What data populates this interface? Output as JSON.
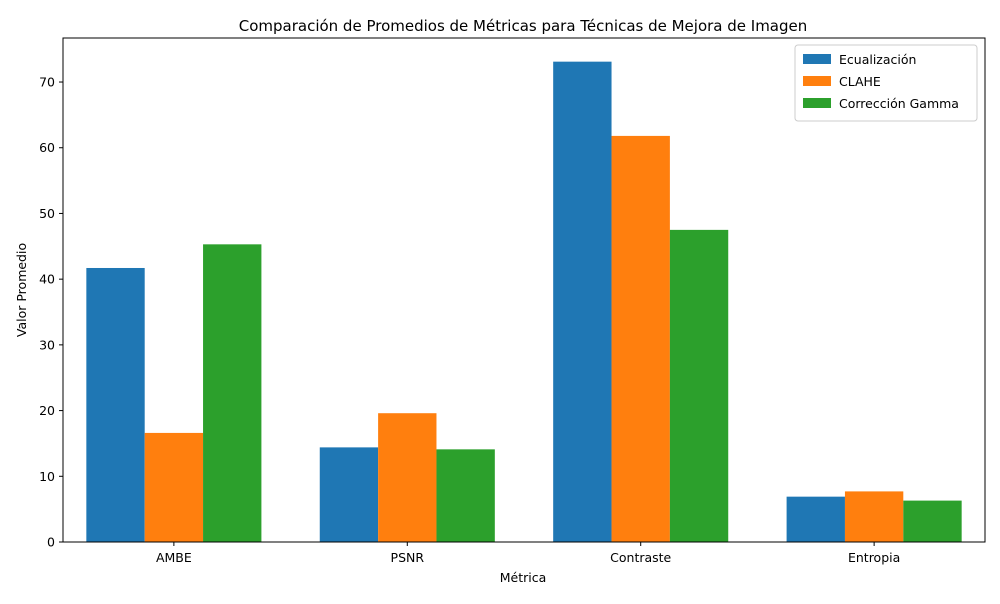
{
  "chart_data": {
    "type": "bar",
    "title": "Comparación de Promedios de Métricas para Técnicas de Mejora de Imagen",
    "xlabel": "Métrica",
    "ylabel": "Valor Promedio",
    "categories": [
      "AMBE",
      "PSNR",
      "Contraste",
      "Entropia"
    ],
    "series": [
      {
        "name": "Ecualización",
        "color": "#1f77b4",
        "values": [
          41.7,
          14.4,
          73.1,
          6.9
        ]
      },
      {
        "name": "CLAHE",
        "color": "#ff7f0e",
        "values": [
          16.6,
          19.6,
          61.8,
          7.7
        ]
      },
      {
        "name": "Corrección Gamma",
        "color": "#2ca02c",
        "values": [
          45.3,
          14.1,
          47.5,
          6.3
        ]
      }
    ],
    "ylim": [
      0,
      76.7
    ],
    "yticks": [
      0,
      10,
      20,
      30,
      40,
      50,
      60,
      70
    ],
    "grid": false,
    "legend_position": "top-right"
  }
}
